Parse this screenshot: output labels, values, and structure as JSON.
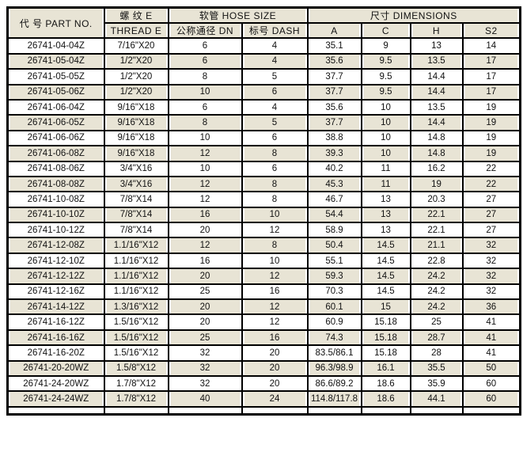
{
  "table": {
    "header": {
      "part_no": "代 号 PART NO.",
      "thread_group": "螺 纹 E",
      "thread_sub": "THREAD E",
      "hose_group": "软管 HOSE SIZE",
      "dn": "公称通径 DN",
      "dash": "标号 DASH",
      "dimensions_group": "尺寸 DIMENSIONS",
      "a": "A",
      "c": "C",
      "h": "H",
      "s2": "S2"
    },
    "columns_order": [
      "part",
      "thread",
      "dn",
      "dash",
      "a",
      "c",
      "h",
      "s2"
    ],
    "rows": [
      {
        "part": "26741-04-04Z",
        "thread": "7/16\"X20",
        "dn": "6",
        "dash": "4",
        "a": "35.1",
        "c": "9",
        "h": "13",
        "s2": "14"
      },
      {
        "part": "26741-05-04Z",
        "thread": "1/2\"X20",
        "dn": "6",
        "dash": "4",
        "a": "35.6",
        "c": "9.5",
        "h": "13.5",
        "s2": "17"
      },
      {
        "part": "26741-05-05Z",
        "thread": "1/2\"X20",
        "dn": "8",
        "dash": "5",
        "a": "37.7",
        "c": "9.5",
        "h": "14.4",
        "s2": "17"
      },
      {
        "part": "26741-05-06Z",
        "thread": "1/2\"X20",
        "dn": "10",
        "dash": "6",
        "a": "37.7",
        "c": "9.5",
        "h": "14.4",
        "s2": "17"
      },
      {
        "part": "26741-06-04Z",
        "thread": "9/16\"X18",
        "dn": "6",
        "dash": "4",
        "a": "35.6",
        "c": "10",
        "h": "13.5",
        "s2": "19"
      },
      {
        "part": "26741-06-05Z",
        "thread": "9/16\"X18",
        "dn": "8",
        "dash": "5",
        "a": "37.7",
        "c": "10",
        "h": "14.4",
        "s2": "19"
      },
      {
        "part": "26741-06-06Z",
        "thread": "9/16\"X18",
        "dn": "10",
        "dash": "6",
        "a": "38.8",
        "c": "10",
        "h": "14.8",
        "s2": "19"
      },
      {
        "part": "26741-06-08Z",
        "thread": "9/16\"X18",
        "dn": "12",
        "dash": "8",
        "a": "39.3",
        "c": "10",
        "h": "14.8",
        "s2": "19"
      },
      {
        "part": "26741-08-06Z",
        "thread": "3/4\"X16",
        "dn": "10",
        "dash": "6",
        "a": "40.2",
        "c": "11",
        "h": "16.2",
        "s2": "22"
      },
      {
        "part": "26741-08-08Z",
        "thread": "3/4\"X16",
        "dn": "12",
        "dash": "8",
        "a": "45.3",
        "c": "11",
        "h": "19",
        "s2": "22"
      },
      {
        "part": "26741-10-08Z",
        "thread": "7/8\"X14",
        "dn": "12",
        "dash": "8",
        "a": "46.7",
        "c": "13",
        "h": "20.3",
        "s2": "27"
      },
      {
        "part": "26741-10-10Z",
        "thread": "7/8\"X14",
        "dn": "16",
        "dash": "10",
        "a": "54.4",
        "c": "13",
        "h": "22.1",
        "s2": "27"
      },
      {
        "part": "26741-10-12Z",
        "thread": "7/8\"X14",
        "dn": "20",
        "dash": "12",
        "a": "58.9",
        "c": "13",
        "h": "22.1",
        "s2": "27"
      },
      {
        "part": "26741-12-08Z",
        "thread": "1.1/16\"X12",
        "dn": "12",
        "dash": "8",
        "a": "50.4",
        "c": "14.5",
        "h": "21.1",
        "s2": "32"
      },
      {
        "part": "26741-12-10Z",
        "thread": "1.1/16\"X12",
        "dn": "16",
        "dash": "10",
        "a": "55.1",
        "c": "14.5",
        "h": "22.8",
        "s2": "32"
      },
      {
        "part": "26741-12-12Z",
        "thread": "1.1/16\"X12",
        "dn": "20",
        "dash": "12",
        "a": "59.3",
        "c": "14.5",
        "h": "24.2",
        "s2": "32"
      },
      {
        "part": "26741-12-16Z",
        "thread": "1.1/16\"X12",
        "dn": "25",
        "dash": "16",
        "a": "70.3",
        "c": "14.5",
        "h": "24.2",
        "s2": "32"
      },
      {
        "part": "26741-14-12Z",
        "thread": "1.3/16\"X12",
        "dn": "20",
        "dash": "12",
        "a": "60.1",
        "c": "15",
        "h": "24.2",
        "s2": "36"
      },
      {
        "part": "26741-16-12Z",
        "thread": "1.5/16\"X12",
        "dn": "20",
        "dash": "12",
        "a": "60.9",
        "c": "15.18",
        "h": "25",
        "s2": "41"
      },
      {
        "part": "26741-16-16Z",
        "thread": "1.5/16\"X12",
        "dn": "25",
        "dash": "16",
        "a": "74.3",
        "c": "15.18",
        "h": "28.7",
        "s2": "41"
      },
      {
        "part": "26741-16-20Z",
        "thread": "1.5/16\"X12",
        "dn": "32",
        "dash": "20",
        "a": "83.5/86.1",
        "c": "15.18",
        "h": "28",
        "s2": "41"
      },
      {
        "part": "26741-20-20WZ",
        "thread": "1.5/8\"X12",
        "dn": "32",
        "dash": "20",
        "a": "96.3/98.9",
        "c": "16.1",
        "h": "35.5",
        "s2": "50"
      },
      {
        "part": "26741-24-20WZ",
        "thread": "1.7/8\"X12",
        "dn": "32",
        "dash": "20",
        "a": "86.6/89.2",
        "c": "18.6",
        "h": "35.9",
        "s2": "60"
      },
      {
        "part": "26741-24-24WZ",
        "thread": "1.7/8\"X12",
        "dn": "40",
        "dash": "24",
        "a": "114.8/117.8",
        "c": "18.6",
        "h": "44.1",
        "s2": "60"
      }
    ],
    "colors": {
      "shaded_row": "#e8e4d5",
      "row_white": "#ffffff",
      "border": "#000000",
      "text": "#111111"
    }
  }
}
